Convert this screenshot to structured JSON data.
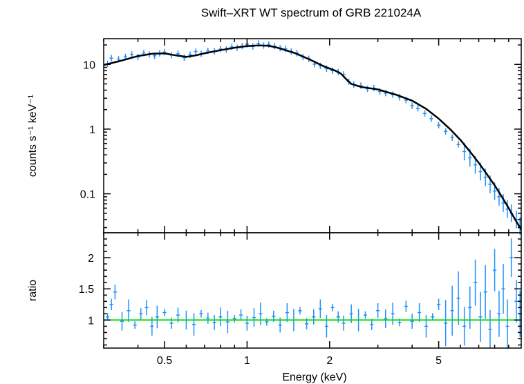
{
  "chart_data": {
    "type": "scatter",
    "title": "Swift–XRT WT spectrum of GRB 221024A",
    "xlabel": "Energy (keV)",
    "x_scale": "log",
    "x_range": [
      0.3,
      10
    ],
    "x_tick_labels": [
      "0.5",
      "1",
      "2",
      "5"
    ],
    "colors": {
      "data": "#1e90ff",
      "model": "#000000",
      "ratio_line": "#00e000",
      "frame": "#000000"
    },
    "panels": [
      {
        "name": "spectrum",
        "ylabel": "counts s⁻¹ keV⁻¹",
        "y_scale": "log",
        "y_range": [
          0.025,
          25
        ],
        "y_tick_labels": [
          "0.1",
          "1",
          "10"
        ],
        "data_series": "data",
        "model_series": "model",
        "data": {
          "x": [
            0.31,
            0.32,
            0.34,
            0.36,
            0.38,
            0.4,
            0.42,
            0.44,
            0.46,
            0.48,
            0.5,
            0.53,
            0.56,
            0.59,
            0.62,
            0.65,
            0.68,
            0.72,
            0.76,
            0.8,
            0.84,
            0.88,
            0.92,
            0.96,
            1.0,
            1.05,
            1.1,
            1.15,
            1.2,
            1.26,
            1.32,
            1.38,
            1.45,
            1.52,
            1.6,
            1.68,
            1.76,
            1.85,
            1.95,
            2.05,
            2.15,
            2.25,
            2.35,
            2.45,
            2.6,
            2.75,
            2.9,
            3.05,
            3.2,
            3.4,
            3.6,
            3.8,
            4.0,
            4.2,
            4.45,
            4.7,
            5.0,
            5.3,
            5.6,
            5.9,
            6.2,
            6.5,
            6.8,
            7.1,
            7.4,
            7.7,
            8.0,
            8.3,
            8.6,
            8.9,
            9.2,
            9.6,
            9.9
          ],
          "y": [
            10.2,
            12.5,
            12.0,
            13.1,
            14.2,
            13.0,
            15.0,
            14.3,
            13.6,
            14.8,
            15.5,
            13.9,
            14.6,
            12.7,
            14.1,
            15.8,
            14.6,
            16.2,
            15.9,
            17.3,
            17.0,
            18.6,
            18.1,
            19.2,
            20.5,
            19.0,
            21.0,
            19.6,
            20.3,
            19.2,
            17.9,
            17.4,
            15.8,
            14.9,
            13.0,
            12.2,
            10.1,
            9.5,
            8.6,
            8.0,
            7.6,
            7.0,
            5.4,
            4.9,
            4.7,
            4.2,
            4.3,
            3.8,
            3.6,
            3.4,
            3.1,
            2.8,
            2.3,
            2.1,
            1.75,
            1.45,
            1.15,
            0.92,
            0.74,
            0.58,
            0.45,
            0.36,
            0.28,
            0.22,
            0.18,
            0.14,
            0.11,
            0.09,
            0.072,
            0.058,
            0.05,
            0.04,
            0.032
          ]
        },
        "model": {
          "x": [
            0.3,
            0.35,
            0.4,
            0.45,
            0.5,
            0.55,
            0.6,
            0.65,
            0.7,
            0.8,
            0.9,
            1.0,
            1.1,
            1.2,
            1.3,
            1.5,
            1.7,
            1.9,
            2.1,
            2.2,
            2.3,
            2.4,
            2.6,
            3.0,
            3.5,
            4.0,
            4.5,
            5.0,
            5.5,
            6.0,
            6.5,
            7.0,
            7.5,
            8.0,
            8.5,
            9.0,
            9.5,
            10.0
          ],
          "y": [
            9.8,
            11.5,
            13.5,
            14.6,
            14.8,
            13.8,
            13.1,
            13.8,
            14.9,
            16.6,
            18.1,
            19.2,
            19.7,
            19.4,
            18.0,
            14.9,
            11.8,
            9.4,
            8.0,
            7.2,
            5.9,
            5.0,
            4.5,
            4.1,
            3.4,
            2.75,
            2.05,
            1.45,
            1.0,
            0.68,
            0.45,
            0.3,
            0.2,
            0.135,
            0.09,
            0.06,
            0.04,
            0.028
          ]
        }
      },
      {
        "name": "ratio",
        "ylabel": "ratio",
        "y_scale": "linear",
        "y_range": [
          0.55,
          2.4
        ],
        "y_tick_labels": [
          "1",
          "1.5",
          "2"
        ],
        "reference_line": 1.0,
        "data": {
          "x": [
            0.31,
            0.32,
            0.33,
            0.35,
            0.37,
            0.39,
            0.41,
            0.43,
            0.45,
            0.47,
            0.5,
            0.53,
            0.56,
            0.6,
            0.64,
            0.68,
            0.72,
            0.76,
            0.8,
            0.85,
            0.9,
            0.95,
            1.0,
            1.06,
            1.12,
            1.18,
            1.25,
            1.32,
            1.4,
            1.48,
            1.56,
            1.65,
            1.75,
            1.85,
            1.95,
            2.05,
            2.15,
            2.25,
            2.4,
            2.55,
            2.7,
            2.85,
            3.0,
            3.2,
            3.4,
            3.6,
            3.8,
            4.0,
            4.25,
            4.5,
            4.75,
            5.0,
            5.3,
            5.6,
            5.9,
            6.2,
            6.5,
            6.8,
            7.1,
            7.4,
            7.7,
            8.0,
            8.3,
            8.6,
            8.9,
            9.2,
            9.6,
            9.9
          ],
          "y": [
            1.05,
            1.25,
            1.45,
            0.98,
            1.15,
            0.92,
            1.1,
            1.2,
            0.9,
            1.05,
            1.12,
            0.95,
            1.08,
            1.0,
            0.93,
            1.1,
            1.03,
            0.96,
            1.05,
            0.97,
            1.02,
            1.08,
            0.95,
            1.04,
            1.1,
            0.97,
            1.06,
            0.92,
            1.12,
            1.0,
            1.15,
            0.94,
            1.05,
            1.18,
            0.9,
            1.2,
            1.05,
            0.95,
            1.1,
            1.0,
            1.08,
            0.93,
            1.15,
            1.02,
            1.1,
            0.96,
            1.22,
            0.98,
            1.12,
            0.9,
            1.05,
            1.25,
            0.95,
            1.15,
            1.35,
            0.9,
            1.2,
            1.6,
            1.05,
            1.45,
            0.85,
            1.8,
            1.1,
            1.5,
            0.9,
            2.0,
            1.3,
            1.1
          ]
        }
      }
    ]
  }
}
